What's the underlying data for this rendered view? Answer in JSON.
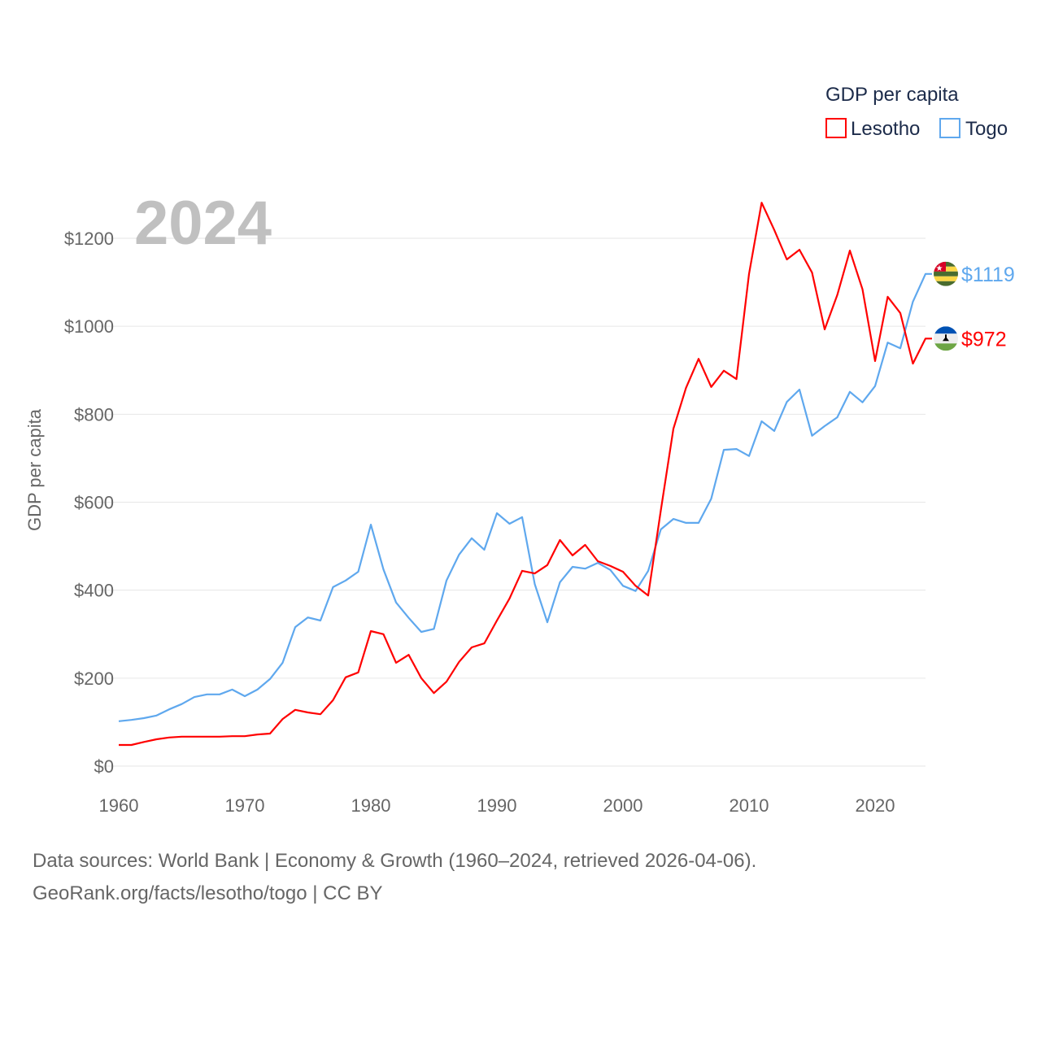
{
  "chart_data": {
    "type": "line",
    "legend_title": "GDP per capita",
    "legend_position": "top-right",
    "ylabel": "GDP per capita",
    "xlabel": "",
    "year_label": "2024",
    "ylim": [
      0,
      1300
    ],
    "xlim": [
      1960,
      2024
    ],
    "y_ticks": [
      0,
      200,
      400,
      600,
      800,
      1000,
      1200
    ],
    "y_tick_labels": [
      "$0",
      "$200",
      "$400",
      "$600",
      "$800",
      "$1000",
      "$1200"
    ],
    "x_ticks": [
      1960,
      1970,
      1980,
      1990,
      2000,
      2010,
      2020
    ],
    "x_tick_labels": [
      "1960",
      "1970",
      "1980",
      "1990",
      "2000",
      "2010",
      "2020"
    ],
    "grid": true,
    "x": [
      1960,
      1961,
      1962,
      1963,
      1964,
      1965,
      1966,
      1967,
      1968,
      1969,
      1970,
      1971,
      1972,
      1973,
      1974,
      1975,
      1976,
      1977,
      1978,
      1979,
      1980,
      1981,
      1982,
      1983,
      1984,
      1985,
      1986,
      1987,
      1988,
      1989,
      1990,
      1991,
      1992,
      1993,
      1994,
      1995,
      1996,
      1997,
      1998,
      1999,
      2000,
      2001,
      2002,
      2003,
      2004,
      2005,
      2006,
      2007,
      2008,
      2009,
      2010,
      2011,
      2012,
      2013,
      2014,
      2015,
      2016,
      2017,
      2018,
      2019,
      2020,
      2021,
      2022,
      2023,
      2024
    ],
    "series": [
      {
        "name": "Lesotho",
        "color": "#ff0000",
        "end_label": "$972",
        "flag": "lesotho-flag",
        "values": [
          48,
          48,
          55,
          61,
          65,
          67,
          67,
          67,
          67,
          68,
          68,
          72,
          74,
          107,
          128,
          122,
          118,
          150,
          202,
          213,
          307,
          300,
          235,
          253,
          200,
          166,
          192,
          237,
          270,
          279,
          331,
          381,
          444,
          438,
          457,
          514,
          479,
          503,
          466,
          455,
          442,
          410,
          388,
          581,
          767,
          860,
          926,
          862,
          899,
          880,
          1119,
          1281,
          1219,
          1152,
          1174,
          1122,
          993,
          1071,
          1172,
          1084,
          921,
          1067,
          1030,
          915,
          972
        ]
      },
      {
        "name": "Togo",
        "color": "#5fa8ee",
        "end_label": "$1119",
        "flag": "togo-flag",
        "values": [
          102,
          105,
          109,
          115,
          129,
          141,
          157,
          163,
          163,
          174,
          159,
          174,
          198,
          235,
          316,
          338,
          331,
          407,
          422,
          442,
          549,
          447,
          372,
          337,
          305,
          312,
          422,
          481,
          518,
          492,
          575,
          551,
          566,
          414,
          327,
          418,
          453,
          449,
          462,
          446,
          410,
          398,
          444,
          538,
          562,
          553,
          553,
          608,
          719,
          721,
          705,
          784,
          762,
          828,
          856,
          751,
          773,
          793,
          851,
          827,
          864,
          963,
          950,
          1056,
          1119
        ]
      }
    ]
  },
  "footer": {
    "line1": "Data sources: World Bank | Economy & Growth (1960–2024, retrieved 2026-04-06).",
    "line2": "GeoRank.org/facts/lesotho/togo | CC BY"
  }
}
